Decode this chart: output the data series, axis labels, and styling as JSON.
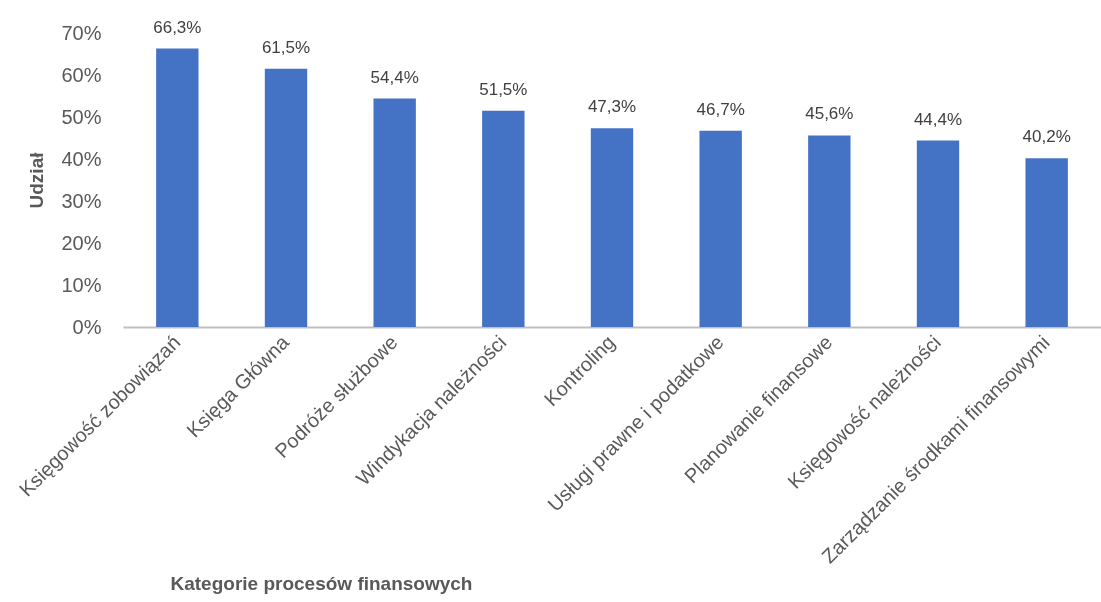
{
  "chart_data": {
    "type": "bar",
    "xlabel": "Kategorie procesów finansowych",
    "ylabel": "Udział",
    "categories": [
      "Księgowość zobowiązań",
      "Księga Główna",
      "Podróże służbowe",
      "Windykacja należności",
      "Kontroling",
      "Usługi prawne i podatkowe",
      "Planowanie finansowe",
      "Księgowość należności",
      "Zarządzanie środkami finansowymi"
    ],
    "values": [
      66.3,
      61.5,
      54.4,
      51.5,
      47.3,
      46.7,
      45.6,
      44.4,
      40.2
    ],
    "value_labels": [
      "66,3%",
      "61,5%",
      "54,4%",
      "51,5%",
      "47,3%",
      "46,7%",
      "45,6%",
      "44,4%",
      "40,2%"
    ],
    "color": "#4472c4",
    "ylim": [
      0,
      70
    ],
    "yticks": [
      {
        "value": 0,
        "label": "0%"
      },
      {
        "value": 10,
        "label": "10%"
      },
      {
        "value": 20,
        "label": "20%"
      },
      {
        "value": 30,
        "label": "30%"
      },
      {
        "value": 40,
        "label": "40%"
      },
      {
        "value": 50,
        "label": "50%"
      },
      {
        "value": 60,
        "label": "60%"
      },
      {
        "value": 70,
        "label": "70%"
      }
    ],
    "grid": false
  }
}
